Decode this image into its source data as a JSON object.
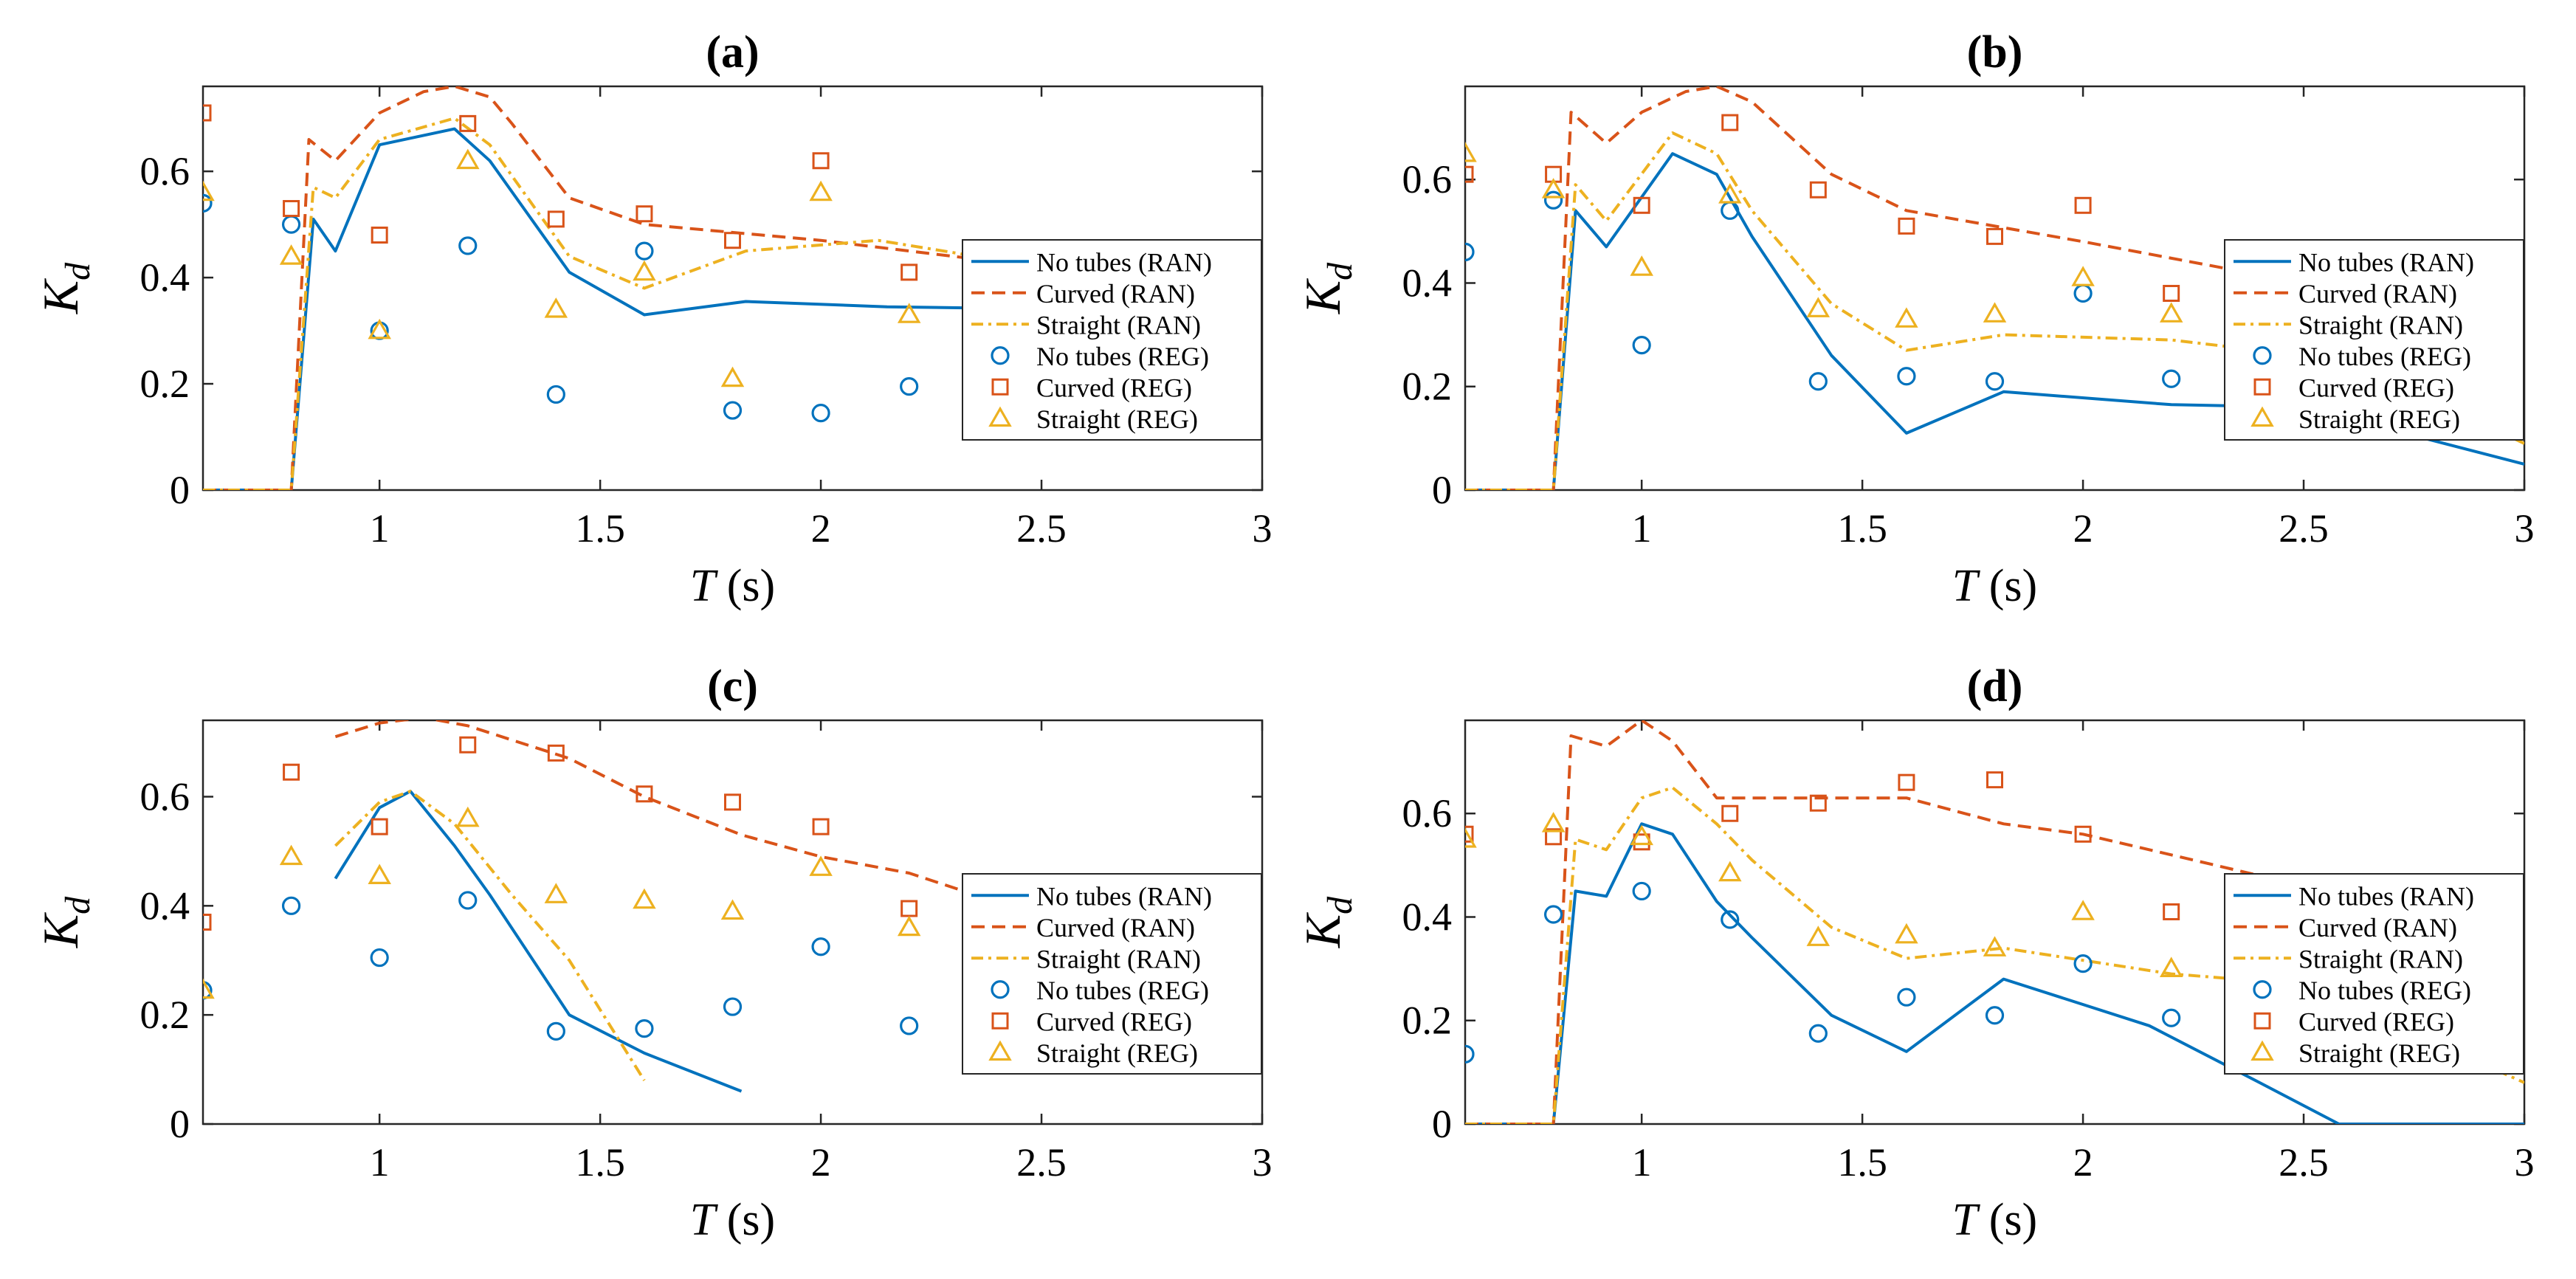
{
  "chart_data": [
    {
      "type": "line",
      "panel_label": "(a)",
      "xlabel_var": "T",
      "xlabel_unit": " (s)",
      "ylabel_main": "K",
      "ylabel_sub": "d",
      "xlim": [
        0.6,
        3.0
      ],
      "ylim": [
        0,
        0.76
      ],
      "xticks": [
        1,
        1.5,
        2,
        2.5,
        3
      ],
      "xtick_labels": [
        "1",
        "1.5",
        "2",
        "2.5",
        "3"
      ],
      "yticks": [
        0,
        0.2,
        0.4,
        0.6
      ],
      "ytick_labels": [
        "0",
        "0.2",
        "0.4",
        "0.6"
      ],
      "legend_position": "right",
      "series": [
        {
          "name": "No tubes (RAN)",
          "kind": "line",
          "style": "solid",
          "color": "#0072BD",
          "x": [
            0.6,
            0.8,
            0.85,
            0.9,
            1.0,
            1.17,
            1.25,
            1.43,
            1.6,
            1.83,
            2.15,
            2.6,
            3.0
          ],
          "y": [
            0,
            0,
            0.51,
            0.45,
            0.65,
            0.68,
            0.62,
            0.41,
            0.33,
            0.355,
            0.345,
            0.34,
            0.23
          ]
        },
        {
          "name": "Curved (RAN)",
          "kind": "line",
          "style": "dashed",
          "color": "#D95319",
          "x": [
            0.6,
            0.8,
            0.84,
            0.9,
            1.0,
            1.1,
            1.17,
            1.25,
            1.3,
            1.43,
            1.6,
            2.0,
            2.5,
            3.0
          ],
          "y": [
            0,
            0,
            0.66,
            0.62,
            0.71,
            0.75,
            0.76,
            0.74,
            0.69,
            0.55,
            0.5,
            0.47,
            0.42,
            0.3
          ]
        },
        {
          "name": "Straight (RAN)",
          "kind": "line",
          "style": "dashdot",
          "color": "#EDB120",
          "x": [
            0.6,
            0.8,
            0.85,
            0.9,
            1.0,
            1.17,
            1.25,
            1.43,
            1.6,
            1.83,
            2.13,
            2.5,
            3.0
          ],
          "y": [
            0,
            0,
            0.57,
            0.55,
            0.66,
            0.7,
            0.65,
            0.44,
            0.38,
            0.45,
            0.47,
            0.42,
            0.3
          ]
        },
        {
          "name": "No tubes (REG)",
          "kind": "marker",
          "marker": "circle",
          "color": "#0072BD",
          "x": [
            0.6,
            0.8,
            1.0,
            1.2,
            1.4,
            1.6,
            1.8,
            2.0,
            2.2
          ],
          "y": [
            0.54,
            0.5,
            0.3,
            0.46,
            0.18,
            0.45,
            0.15,
            0.145,
            0.195
          ]
        },
        {
          "name": "Curved (REG)",
          "kind": "marker",
          "marker": "square",
          "color": "#D95319",
          "x": [
            0.6,
            0.8,
            1.0,
            1.2,
            1.4,
            1.6,
            1.8,
            2.0,
            2.2
          ],
          "y": [
            0.71,
            0.53,
            0.48,
            0.69,
            0.51,
            0.52,
            0.47,
            0.62,
            0.41
          ]
        },
        {
          "name": "Straight (REG)",
          "kind": "marker",
          "marker": "triangle",
          "color": "#EDB120",
          "x": [
            0.6,
            0.8,
            1.0,
            1.2,
            1.4,
            1.6,
            1.8,
            2.0,
            2.2
          ],
          "y": [
            0.56,
            0.44,
            0.3,
            0.62,
            0.34,
            0.41,
            0.21,
            0.56,
            0.33
          ]
        }
      ]
    },
    {
      "type": "line",
      "panel_label": "(b)",
      "xlabel_var": "T",
      "xlabel_unit": " (s)",
      "ylabel_main": "K",
      "ylabel_sub": "d",
      "xlim": [
        0.6,
        3.0
      ],
      "ylim": [
        0,
        0.78
      ],
      "xticks": [
        1,
        1.5,
        2,
        2.5,
        3
      ],
      "xtick_labels": [
        "1",
        "1.5",
        "2",
        "2.5",
        "3"
      ],
      "yticks": [
        0,
        0.2,
        0.4,
        0.6
      ],
      "ytick_labels": [
        "0",
        "0.2",
        "0.4",
        "0.6"
      ],
      "legend_position": "right",
      "series": [
        {
          "name": "No tubes (RAN)",
          "kind": "line",
          "style": "solid",
          "color": "#0072BD",
          "x": [
            0.6,
            0.8,
            0.85,
            0.92,
            1.07,
            1.17,
            1.25,
            1.43,
            1.6,
            1.82,
            2.2,
            2.5,
            3.0
          ],
          "y": [
            0,
            0,
            0.54,
            0.47,
            0.65,
            0.61,
            0.49,
            0.26,
            0.11,
            0.19,
            0.165,
            0.16,
            0.05
          ]
        },
        {
          "name": "Curved (RAN)",
          "kind": "line",
          "style": "dashed",
          "color": "#D95319",
          "x": [
            0.6,
            0.8,
            0.84,
            0.92,
            1.0,
            1.1,
            1.17,
            1.25,
            1.43,
            1.6,
            2.0,
            2.5,
            3.0
          ],
          "y": [
            0,
            0,
            0.73,
            0.67,
            0.73,
            0.77,
            0.78,
            0.75,
            0.61,
            0.54,
            0.48,
            0.4,
            0.26
          ]
        },
        {
          "name": "Straight (RAN)",
          "kind": "line",
          "style": "dashdot",
          "color": "#EDB120",
          "x": [
            0.6,
            0.8,
            0.85,
            0.92,
            1.07,
            1.17,
            1.25,
            1.43,
            1.6,
            1.82,
            2.2,
            2.6,
            3.0
          ],
          "y": [
            0,
            0,
            0.59,
            0.52,
            0.69,
            0.65,
            0.54,
            0.36,
            0.27,
            0.3,
            0.29,
            0.25,
            0.09
          ]
        },
        {
          "name": "No tubes (REG)",
          "kind": "marker",
          "marker": "circle",
          "color": "#0072BD",
          "x": [
            0.6,
            0.8,
            1.0,
            1.2,
            1.4,
            1.6,
            1.8,
            2.0,
            2.2
          ],
          "y": [
            0.46,
            0.56,
            0.28,
            0.54,
            0.21,
            0.22,
            0.21,
            0.38,
            0.215
          ]
        },
        {
          "name": "Curved (REG)",
          "kind": "marker",
          "marker": "square",
          "color": "#D95319",
          "x": [
            0.6,
            0.8,
            1.0,
            1.2,
            1.4,
            1.6,
            1.8,
            2.0,
            2.2
          ],
          "y": [
            0.61,
            0.61,
            0.55,
            0.71,
            0.58,
            0.51,
            0.49,
            0.55,
            0.38
          ]
        },
        {
          "name": "Straight (REG)",
          "kind": "marker",
          "marker": "triangle",
          "color": "#EDB120",
          "x": [
            0.6,
            0.8,
            1.0,
            1.2,
            1.4,
            1.6,
            1.8,
            2.0,
            2.2
          ],
          "y": [
            0.65,
            0.58,
            0.43,
            0.57,
            0.35,
            0.33,
            0.34,
            0.41,
            0.34
          ]
        }
      ]
    },
    {
      "type": "line",
      "panel_label": "(c)",
      "xlabel_var": "T",
      "xlabel_unit": " (s)",
      "ylabel_main": "K",
      "ylabel_sub": "d",
      "xlim": [
        0.6,
        3.0
      ],
      "ylim": [
        0,
        0.74
      ],
      "xticks": [
        1,
        1.5,
        2,
        2.5,
        3
      ],
      "xtick_labels": [
        "1",
        "1.5",
        "2",
        "2.5",
        "3"
      ],
      "yticks": [
        0,
        0.2,
        0.4,
        0.6
      ],
      "ytick_labels": [
        "0",
        "0.2",
        "0.4",
        "0.6"
      ],
      "legend_position": "right",
      "series": [
        {
          "name": "No tubes (RAN)",
          "kind": "line",
          "style": "solid",
          "color": "#0072BD",
          "x": [
            0.9,
            1.0,
            1.07,
            1.17,
            1.25,
            1.43,
            1.6,
            1.82
          ],
          "y": [
            0.45,
            0.58,
            0.61,
            0.51,
            0.42,
            0.2,
            0.13,
            0.06
          ]
        },
        {
          "name": "Curved (RAN)",
          "kind": "line",
          "style": "dashed",
          "color": "#D95319",
          "x": [
            0.9,
            1.0,
            1.1,
            1.2,
            1.43,
            1.6,
            1.82,
            2.0,
            2.2,
            2.5,
            3.0
          ],
          "y": [
            0.71,
            0.735,
            0.745,
            0.73,
            0.67,
            0.6,
            0.53,
            0.49,
            0.46,
            0.38,
            0.23
          ]
        },
        {
          "name": "Straight (RAN)",
          "kind": "line",
          "style": "dashdot",
          "color": "#EDB120",
          "x": [
            0.9,
            1.0,
            1.07,
            1.17,
            1.3,
            1.43,
            1.6
          ],
          "y": [
            0.51,
            0.59,
            0.61,
            0.55,
            0.42,
            0.3,
            0.08
          ]
        },
        {
          "name": "No tubes (REG)",
          "kind": "marker",
          "marker": "circle",
          "color": "#0072BD",
          "x": [
            0.6,
            0.8,
            1.0,
            1.2,
            1.4,
            1.6,
            1.8,
            2.0,
            2.2
          ],
          "y": [
            0.245,
            0.4,
            0.305,
            0.41,
            0.17,
            0.175,
            0.215,
            0.325,
            0.18
          ]
        },
        {
          "name": "Curved (REG)",
          "kind": "marker",
          "marker": "square",
          "color": "#D95319",
          "x": [
            0.6,
            0.8,
            1.0,
            1.2,
            1.4,
            1.6,
            1.8,
            2.0,
            2.2
          ],
          "y": [
            0.37,
            0.645,
            0.545,
            0.695,
            0.68,
            0.605,
            0.59,
            0.545,
            0.395
          ]
        },
        {
          "name": "Straight (REG)",
          "kind": "marker",
          "marker": "triangle",
          "color": "#EDB120",
          "x": [
            0.6,
            0.8,
            1.0,
            1.2,
            1.4,
            1.6,
            1.8,
            2.0,
            2.2
          ],
          "y": [
            0.245,
            0.49,
            0.455,
            0.56,
            0.42,
            0.41,
            0.39,
            0.47,
            0.36
          ]
        }
      ]
    },
    {
      "type": "line",
      "panel_label": "(d)",
      "xlabel_var": "T",
      "xlabel_unit": " (s)",
      "ylabel_main": "K",
      "ylabel_sub": "d",
      "xlim": [
        0.6,
        3.0
      ],
      "ylim": [
        0,
        0.78
      ],
      "xticks": [
        1,
        1.5,
        2,
        2.5,
        3
      ],
      "xtick_labels": [
        "1",
        "1.5",
        "2",
        "2.5",
        "3"
      ],
      "yticks": [
        0,
        0.2,
        0.4,
        0.6
      ],
      "ytick_labels": [
        "0",
        "0.2",
        "0.4",
        "0.6"
      ],
      "legend_position": "right",
      "series": [
        {
          "name": "No tubes (RAN)",
          "kind": "line",
          "style": "solid",
          "color": "#0072BD",
          "x": [
            0.6,
            0.8,
            0.85,
            0.92,
            1.0,
            1.07,
            1.17,
            1.25,
            1.43,
            1.6,
            1.82,
            2.15,
            2.4,
            2.58,
            3.0
          ],
          "y": [
            0,
            0,
            0.45,
            0.44,
            0.58,
            0.56,
            0.43,
            0.36,
            0.21,
            0.14,
            0.28,
            0.19,
            0.08,
            0,
            0
          ]
        },
        {
          "name": "Curved (RAN)",
          "kind": "line",
          "style": "dashed",
          "color": "#D95319",
          "x": [
            0.6,
            0.8,
            0.84,
            0.92,
            1.0,
            1.07,
            1.17,
            1.25,
            1.43,
            1.6,
            1.82,
            2.0,
            2.5,
            3.0
          ],
          "y": [
            0,
            0,
            0.75,
            0.73,
            0.78,
            0.74,
            0.63,
            0.63,
            0.63,
            0.63,
            0.58,
            0.56,
            0.46,
            0.29
          ]
        },
        {
          "name": "Straight (RAN)",
          "kind": "line",
          "style": "dashdot",
          "color": "#EDB120",
          "x": [
            0.6,
            0.8,
            0.85,
            0.92,
            1.0,
            1.07,
            1.17,
            1.25,
            1.43,
            1.6,
            1.82,
            2.2,
            2.5,
            3.0
          ],
          "y": [
            0,
            0,
            0.55,
            0.53,
            0.63,
            0.65,
            0.58,
            0.51,
            0.38,
            0.32,
            0.34,
            0.29,
            0.27,
            0.08
          ]
        },
        {
          "name": "No tubes (REG)",
          "kind": "marker",
          "marker": "circle",
          "color": "#0072BD",
          "x": [
            0.6,
            0.8,
            1.0,
            1.2,
            1.4,
            1.6,
            1.8,
            2.0,
            2.2
          ],
          "y": [
            0.135,
            0.405,
            0.45,
            0.395,
            0.175,
            0.245,
            0.21,
            0.31,
            0.205
          ]
        },
        {
          "name": "Curved (REG)",
          "kind": "marker",
          "marker": "square",
          "color": "#D95319",
          "x": [
            0.6,
            0.8,
            1.0,
            1.2,
            1.4,
            1.6,
            1.8,
            2.0,
            2.2
          ],
          "y": [
            0.56,
            0.555,
            0.545,
            0.6,
            0.62,
            0.66,
            0.665,
            0.56,
            0.41
          ]
        },
        {
          "name": "Straight (REG)",
          "kind": "marker",
          "marker": "triangle",
          "color": "#EDB120",
          "x": [
            0.6,
            0.8,
            1.0,
            1.2,
            1.4,
            1.6,
            1.8,
            2.0,
            2.2
          ],
          "y": [
            0.55,
            0.58,
            0.555,
            0.485,
            0.36,
            0.365,
            0.34,
            0.41,
            0.3
          ]
        }
      ]
    }
  ]
}
